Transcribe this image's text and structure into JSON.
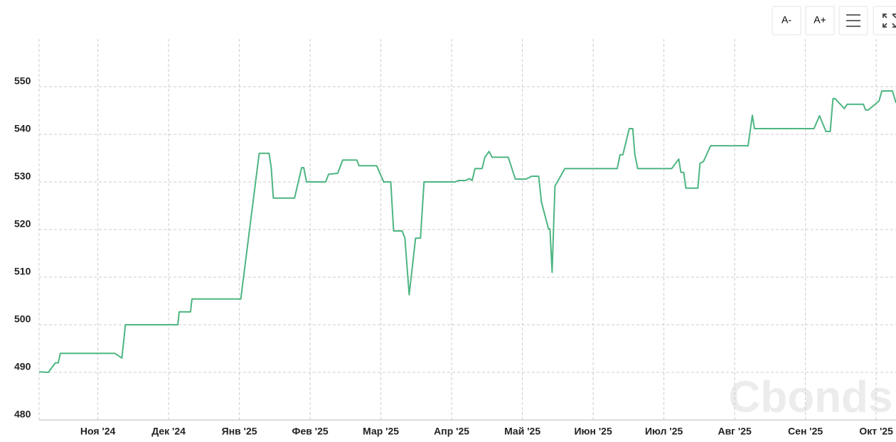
{
  "chart_data": {
    "type": "line",
    "buttons": [
      "A-",
      "A+"
    ],
    "watermark": "Cbonds",
    "color": "#4db581",
    "grid": true,
    "xlim": [
      -0.83,
      11.28
    ],
    "xticks": [
      {
        "value": 0,
        "label": "Ноя '24"
      },
      {
        "value": 1,
        "label": "Дек '24"
      },
      {
        "value": 2,
        "label": "Янв '25"
      },
      {
        "value": 3,
        "label": "Фев '25"
      },
      {
        "value": 4,
        "label": "Мар '25"
      },
      {
        "value": 5,
        "label": "Апр '25"
      },
      {
        "value": 6,
        "label": "Май '25"
      },
      {
        "value": 7,
        "label": "Июн '25"
      },
      {
        "value": 8,
        "label": "Июл '25"
      },
      {
        "value": 9,
        "label": "Авг '25"
      },
      {
        "value": 10,
        "label": "Сен '25"
      },
      {
        "value": 11,
        "label": "Окт '25"
      }
    ],
    "ylim": [
      480,
      560
    ],
    "yticks": [
      480,
      490,
      500,
      510,
      520,
      530,
      540,
      550
    ],
    "x": [
      -0.83,
      -0.7,
      -0.6,
      -0.56,
      -0.53,
      0.24,
      0.34,
      0.39,
      1.13,
      1.15,
      1.31,
      1.33,
      2.02,
      2.28,
      2.42,
      2.45,
      2.48,
      2.78,
      2.88,
      2.91,
      2.95,
      3.22,
      3.26,
      3.39,
      3.46,
      3.66,
      3.69,
      3.94,
      4.04,
      4.14,
      4.18,
      4.3,
      4.34,
      4.4,
      4.49,
      4.56,
      4.61,
      5.05,
      5.1,
      5.2,
      5.25,
      5.29,
      5.33,
      5.43,
      5.47,
      5.53,
      5.57,
      5.8,
      5.9,
      6.05,
      6.13,
      6.23,
      6.27,
      6.37,
      6.39,
      6.42,
      6.46,
      6.6,
      7.34,
      7.38,
      7.42,
      7.51,
      7.56,
      7.59,
      7.63,
      8.11,
      8.21,
      8.24,
      8.28,
      8.31,
      8.48,
      8.51,
      8.56,
      8.66,
      9.19,
      9.25,
      9.28,
      10.12,
      10.2,
      10.29,
      10.35,
      10.39,
      10.42,
      10.55,
      10.59,
      10.82,
      10.85,
      10.89,
      11.04,
      11.08,
      11.23,
      11.28
    ],
    "values": [
      490.1,
      490,
      492,
      492,
      494,
      494,
      493,
      500,
      500,
      502.7,
      502.7,
      505.4,
      505.4,
      536,
      536,
      533,
      526.6,
      526.6,
      533,
      533,
      530,
      530,
      531.6,
      531.8,
      534.6,
      534.6,
      533.4,
      533.4,
      530,
      530,
      519.7,
      519.7,
      518.2,
      506.3,
      518.2,
      518.2,
      530,
      530,
      530.3,
      530.3,
      530.7,
      530.3,
      532.8,
      532.8,
      535.2,
      536.4,
      535.2,
      535.2,
      530.6,
      530.6,
      531.2,
      531.2,
      525.7,
      520.1,
      520.1,
      511,
      529.1,
      532.8,
      532.8,
      535.7,
      535.7,
      541.2,
      541.2,
      535.7,
      532.8,
      532.8,
      534.8,
      532,
      532,
      528.7,
      528.7,
      533.9,
      534.3,
      537.6,
      537.6,
      544,
      541.2,
      541.2,
      543.9,
      540.6,
      540.6,
      547.5,
      547.5,
      545.4,
      546.3,
      546.3,
      545.1,
      545.1,
      547,
      549.1,
      549.1,
      546.6
    ]
  }
}
